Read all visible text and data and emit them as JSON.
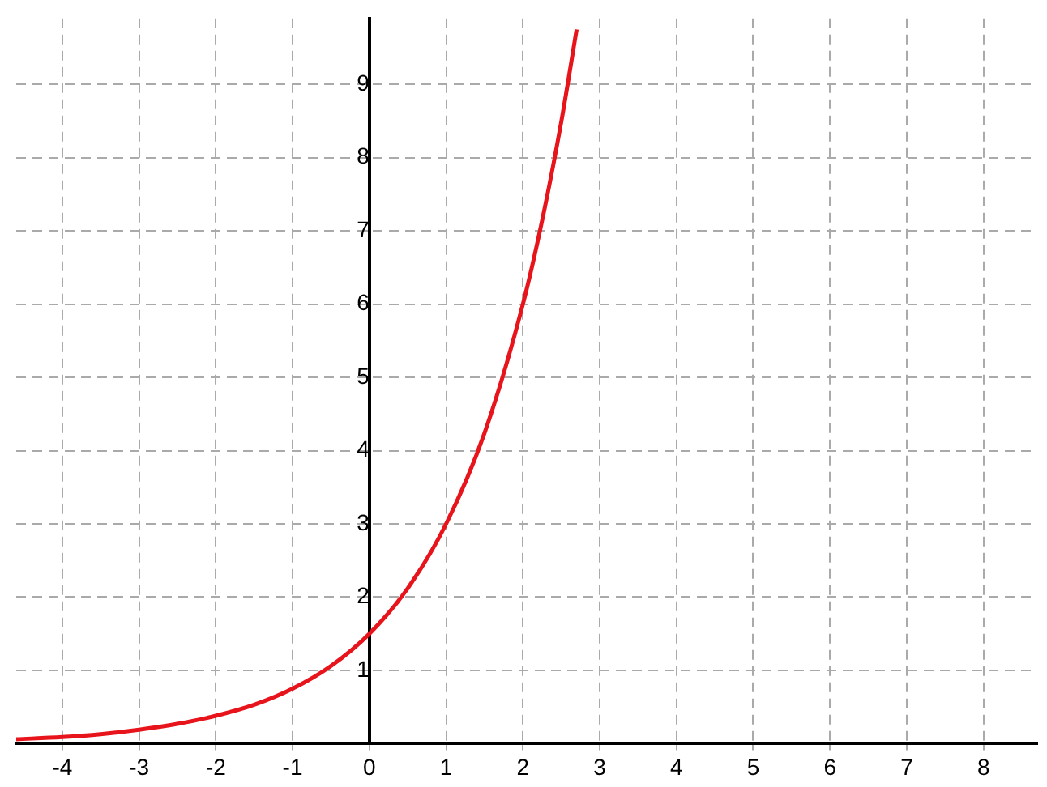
{
  "chart_data": {
    "type": "line",
    "x": [
      -4.6,
      -4,
      -3.5,
      -3,
      -2.5,
      -2,
      -1.5,
      -1,
      -0.5,
      0,
      0.5,
      1,
      1.5,
      2,
      2.25,
      2.5,
      2.7
    ],
    "series": [
      {
        "color": "#e8141b",
        "values": [
          0.06,
          0.09,
          0.13,
          0.19,
          0.27,
          0.38,
          0.53,
          0.75,
          1.06,
          1.5,
          2.12,
          3,
          4.24,
          6,
          7.14,
          8.49,
          9.75
        ]
      }
    ],
    "xlim": [
      -4.6,
      8.7
    ],
    "ylim": [
      0,
      9.9
    ],
    "xticks": [
      -4,
      -3,
      -2,
      -1,
      0,
      1,
      2,
      3,
      4,
      5,
      6,
      7,
      8
    ],
    "yticks": [
      1,
      2,
      3,
      4,
      5,
      6,
      7,
      8,
      9
    ],
    "grid": true,
    "marker": "none",
    "line_style": "solid"
  }
}
